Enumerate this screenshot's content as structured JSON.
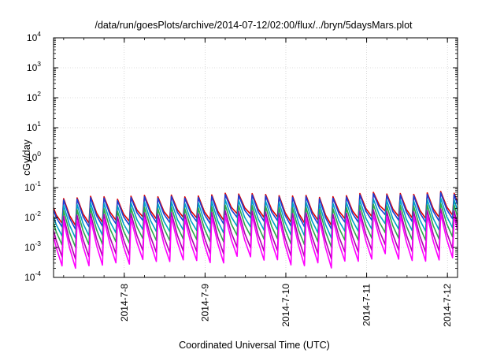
{
  "chart_data": {
    "type": "line",
    "title": "/data/run/goesPlots/archive/2014-07-12/02:00/flux/../bryn/5daysMars.plot",
    "xlabel": "Coordinated Universal Time (UTC)",
    "ylabel": "cGy/day",
    "xlim": [
      "2014-07-07 03:00",
      "2014-07-12 03:00"
    ],
    "ylim": [
      0.0001,
      10000
    ],
    "yscale": "log",
    "grid": true,
    "y_ticks": [
      {
        "base": "10",
        "exp": "-4",
        "value": 0.0001
      },
      {
        "base": "10",
        "exp": "-3",
        "value": 0.001
      },
      {
        "base": "10",
        "exp": "-2",
        "value": 0.01
      },
      {
        "base": "10",
        "exp": "-1",
        "value": 0.1
      },
      {
        "base": "10",
        "exp": "0",
        "value": 1
      },
      {
        "base": "10",
        "exp": "1",
        "value": 10
      },
      {
        "base": "10",
        "exp": "2",
        "value": 100
      },
      {
        "base": "10",
        "exp": "3",
        "value": 1000
      },
      {
        "base": "10",
        "exp": "4",
        "value": 10000
      }
    ],
    "x_ticks": [
      {
        "label": "2014-7-8",
        "value": "2014-07-08 00:00"
      },
      {
        "label": "2014-7-9",
        "value": "2014-07-09 00:00"
      },
      {
        "label": "2014-7-10",
        "value": "2014-07-10 00:00"
      },
      {
        "label": "2014-7-11",
        "value": "2014-07-11 00:00"
      },
      {
        "label": "2014-7-12",
        "value": "2014-07-12 00:00"
      }
    ],
    "series": [
      {
        "color": "#e00000",
        "peak": 0.05,
        "trough": 0.008
      },
      {
        "color": "#1a3fd6",
        "peak": 0.045,
        "trough": 0.006
      },
      {
        "color": "#00a0c8",
        "peak": 0.03,
        "trough": 0.003
      },
      {
        "color": "#2ea84a",
        "peak": 0.02,
        "trough": 0.0015
      },
      {
        "color": "#b000b0",
        "peak": 0.013,
        "trough": 0.0006
      },
      {
        "color": "#ff00ff",
        "peak": 0.009,
        "trough": 0.0003
      }
    ],
    "pattern": {
      "peak_spacing_hours": 4,
      "amplitude_by_day": [
        {
          "start": "2014-07-07 03:00",
          "factor": 0.9
        },
        {
          "start": "2014-07-08 06:00",
          "factor": 1.0
        },
        {
          "start": "2014-07-09 00:00",
          "factor": 1.2
        },
        {
          "start": "2014-07-10 00:00",
          "factor": 1.1
        },
        {
          "start": "2014-07-11 00:00",
          "factor": 1.3
        },
        {
          "start": "2014-07-12 00:00",
          "factor": 1.15
        }
      ]
    }
  }
}
